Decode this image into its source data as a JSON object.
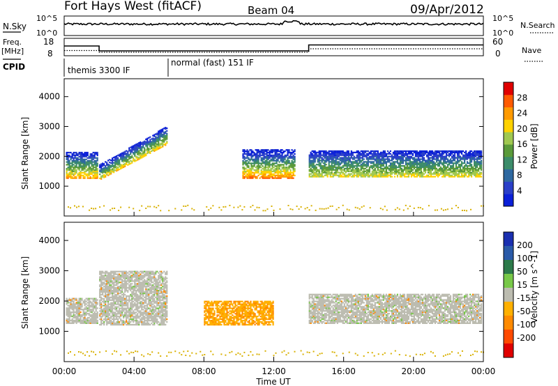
{
  "header": {
    "station": "Fort Hays West (fitACF)",
    "beam": "Beam 04",
    "date": "09/Apr/2012"
  },
  "noise_panel": {
    "left_label": "N.Sky",
    "left_ticks": [
      "10^5",
      "10^0"
    ],
    "right_label": "N.Search",
    "right_ticks": [
      "10^5",
      "10^0"
    ]
  },
  "freq_panel": {
    "left_label_line1": "Freq.",
    "left_label_line2": "[MHz]",
    "left_ticks": [
      "18",
      "8"
    ],
    "right_label": "Nave",
    "right_ticks": [
      "60",
      "0"
    ],
    "freq_steps": [
      {
        "t": 0.0,
        "f": 13.6
      },
      {
        "t": 2.0,
        "f": 13.6
      },
      {
        "t": 2.0,
        "f": 10.8
      },
      {
        "t": 14.0,
        "f": 10.8
      },
      {
        "t": 14.0,
        "f": 14.2
      },
      {
        "t": 24.0,
        "f": 14.2
      }
    ],
    "nave_steps": [
      {
        "t": 0.0,
        "n": 18
      },
      {
        "t": 2.0,
        "n": 18
      },
      {
        "t": 2.0,
        "n": 12
      },
      {
        "t": 14.0,
        "n": 12
      },
      {
        "t": 14.0,
        "n": 24
      },
      {
        "t": 24.0,
        "n": 24
      }
    ]
  },
  "cpid_panel": {
    "label": "CPID",
    "modes": [
      {
        "start": 0,
        "end": 6,
        "label": "themis 3300 IF"
      },
      {
        "start": 6,
        "end": 24,
        "label": "normal (fast) 151 IF"
      }
    ]
  },
  "x_axis": {
    "label": "Time UT",
    "ticks": [
      "00:00",
      "04:00",
      "08:00",
      "12:00",
      "16:00",
      "20:00",
      "00:00"
    ],
    "range": [
      0,
      24
    ]
  },
  "colors": {
    "power": [
      "#0a1fd8",
      "#2a3fc8",
      "#2e68a0",
      "#3c8c6a",
      "#5a9a3a",
      "#a0c850",
      "#ffd200",
      "#ff9a00",
      "#ff5a00",
      "#e00000"
    ],
    "velocity": [
      "#1a2fb0",
      "#2a5aa8",
      "#2c7a4a",
      "#78c848",
      "#bcbcb0",
      "#ffb000",
      "#ff8a00",
      "#ff4a00",
      "#e00000"
    ],
    "ground": "#bcbcb0"
  },
  "chart_data": [
    {
      "type": "heatmap",
      "title": "Power",
      "ylabel": "Slant Range [km]",
      "xlabel": "",
      "y_ticks": [
        1000,
        2000,
        3000,
        4000
      ],
      "ylim": [
        0,
        4600
      ],
      "colorbar": {
        "label": "Power [dB]",
        "range": [
          0,
          32
        ],
        "ticks": [
          4,
          8,
          12,
          16,
          20,
          24,
          28
        ]
      },
      "echo_bands": [
        {
          "t_start": 0.1,
          "t_end": 1.9,
          "r_low": 1250,
          "r_high": 2150,
          "peak": 22
        },
        {
          "t_start": 2.0,
          "t_end": 5.9,
          "r_low_start": 1200,
          "r_low_end": 2400,
          "r_high_start": 1700,
          "r_high_end": 3000,
          "peak": 20
        },
        {
          "t_start": 10.2,
          "t_end": 13.2,
          "r_low": 1250,
          "r_high": 2200,
          "peak": 24
        },
        {
          "t_start": 14.0,
          "t_end": 23.9,
          "r_low": 1300,
          "r_high": 2200,
          "peak": 18
        }
      ]
    },
    {
      "type": "heatmap",
      "title": "Velocity",
      "ylabel": "Slant Range [km]",
      "xlabel": "Time UT",
      "y_ticks": [
        1000,
        2000,
        3000,
        4000
      ],
      "ylim": [
        0,
        4600
      ],
      "colorbar": {
        "label": "Velocity [m s^-1]",
        "range": [
          -250,
          250
        ],
        "ticks": [
          200,
          100,
          50,
          15,
          -15,
          -50,
          -100,
          -200
        ]
      },
      "echo_bands": [
        {
          "t_start": 0.1,
          "t_end": 1.9,
          "r_low": 1250,
          "r_high": 2100,
          "velocity": 0
        },
        {
          "t_start": 2.0,
          "t_end": 5.9,
          "r_low": 1200,
          "r_high": 3000,
          "velocity": 0
        },
        {
          "t_start": 8.0,
          "t_end": 12.0,
          "r_low": 1200,
          "r_high": 2000,
          "velocity": -40
        },
        {
          "t_start": 14.0,
          "t_end": 23.9,
          "r_low": 1250,
          "r_high": 2200,
          "velocity": 0
        }
      ]
    }
  ]
}
